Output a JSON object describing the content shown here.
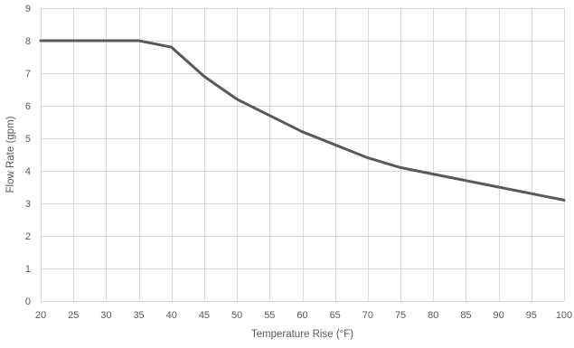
{
  "chart_data": {
    "type": "line",
    "title": "",
    "xlabel": "Temperature Rise (°F)",
    "ylabel": "Flow Rate (gpm)",
    "xlim": [
      20,
      100
    ],
    "ylim": [
      0,
      9
    ],
    "x_ticks": [
      20,
      25,
      30,
      35,
      40,
      45,
      50,
      55,
      60,
      65,
      70,
      75,
      80,
      85,
      90,
      95,
      100
    ],
    "y_ticks": [
      0,
      1,
      2,
      3,
      4,
      5,
      6,
      7,
      8,
      9
    ],
    "grid": true,
    "legend": "none",
    "series": [
      {
        "color": "#595959",
        "points": [
          {
            "x": 20,
            "y": 8.0
          },
          {
            "x": 35,
            "y": 8.0
          },
          {
            "x": 40,
            "y": 7.8
          },
          {
            "x": 45,
            "y": 6.9
          },
          {
            "x": 50,
            "y": 6.2
          },
          {
            "x": 55,
            "y": 5.7
          },
          {
            "x": 60,
            "y": 5.2
          },
          {
            "x": 65,
            "y": 4.8
          },
          {
            "x": 70,
            "y": 4.4
          },
          {
            "x": 75,
            "y": 4.1
          },
          {
            "x": 80,
            "y": 3.9
          },
          {
            "x": 85,
            "y": 3.7
          },
          {
            "x": 90,
            "y": 3.5
          },
          {
            "x": 95,
            "y": 3.3
          },
          {
            "x": 100,
            "y": 3.1
          }
        ]
      }
    ]
  }
}
